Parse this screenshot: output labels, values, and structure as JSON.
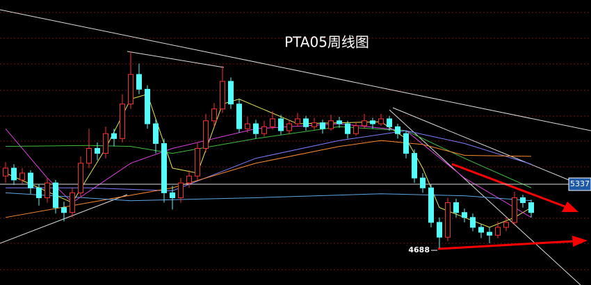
{
  "chart_data": {
    "type": "candlestick",
    "title": "PTA05周线图",
    "ylim": [
      4315,
      7205
    ],
    "up_color": "#ff3030",
    "down_color": "#54fcfc",
    "price_line": 5337,
    "low_label": 4688,
    "open": [
      5420,
      5500,
      5380,
      5450,
      5300,
      5200,
      5350,
      5100,
      5050,
      5250,
      5550,
      5700,
      5650,
      5850,
      5800,
      6150,
      6450,
      6300,
      5950,
      5750,
      5250,
      5200,
      5350,
      5420,
      5700,
      5980,
      6100,
      6380,
      6150,
      5900,
      5950,
      5850,
      5920,
      6000,
      5880,
      5950,
      6000,
      5920,
      5960,
      5900,
      5980,
      5950,
      5850,
      5930,
      5980,
      5950,
      6000,
      5920,
      5850,
      5650,
      5400,
      5300,
      4950,
      4800,
      5150,
      5050,
      5000,
      4900,
      4850,
      4820,
      4900,
      4950,
      5200,
      5150
    ],
    "high": [
      5560,
      5540,
      5500,
      5480,
      5340,
      5400,
      5380,
      5160,
      5300,
      5620,
      5900,
      5760,
      5920,
      5900,
      6250,
      6684,
      6560,
      6340,
      6000,
      5800,
      5320,
      5400,
      5480,
      5760,
      6050,
      6160,
      6536,
      6420,
      6200,
      6020,
      5990,
      5980,
      6080,
      6040,
      5990,
      6060,
      6030,
      6010,
      5990,
      6040,
      6020,
      5980,
      5970,
      6050,
      6010,
      6050,
      6030,
      5950,
      5880,
      5690,
      5450,
      5340,
      5000,
      5200,
      5190,
      5090,
      5040,
      4930,
      4900,
      4960,
      5000,
      5260,
      5230,
      5180
    ],
    "low": [
      5350,
      5330,
      5340,
      5240,
      5120,
      5150,
      5040,
      4960,
      5000,
      5200,
      5500,
      5580,
      5600,
      5720,
      5760,
      6100,
      6250,
      5900,
      5650,
      5150,
      5080,
      5150,
      5300,
      5380,
      5660,
      5920,
      6060,
      6100,
      5860,
      5860,
      5800,
      5820,
      5890,
      5840,
      5850,
      5920,
      5880,
      5890,
      5850,
      5880,
      5910,
      5800,
      5830,
      5900,
      5900,
      5930,
      5880,
      5800,
      5600,
      5350,
      5250,
      4900,
      4688,
      4760,
      5000,
      4950,
      4860,
      4790,
      4738,
      4790,
      4860,
      4920,
      5100,
      5000
    ],
    "close": [
      5500,
      5380,
      5450,
      5300,
      5200,
      5350,
      5100,
      5050,
      5250,
      5550,
      5700,
      5650,
      5850,
      5800,
      6150,
      6450,
      6300,
      5950,
      5750,
      5250,
      5200,
      5350,
      5420,
      5700,
      5980,
      6100,
      6380,
      6150,
      5900,
      5950,
      5850,
      5920,
      6000,
      5880,
      5950,
      6000,
      5920,
      5960,
      5900,
      5980,
      5950,
      5850,
      5930,
      5980,
      5950,
      6000,
      5920,
      5850,
      5650,
      5400,
      5300,
      4950,
      4800,
      5150,
      5050,
      5000,
      4900,
      4850,
      4820,
      4900,
      4950,
      5200,
      5150,
      5050
    ],
    "lines": [
      {
        "color": "#e8e85a",
        "x": [
          0,
          4,
          8,
          12,
          15,
          17,
          20,
          23,
          26,
          28,
          35,
          45,
          48,
          50,
          52,
          55,
          58,
          61,
          63
        ],
        "values": [
          5450,
          5300,
          5150,
          5700,
          6200,
          6250,
          5500,
          5450,
          6150,
          6200,
          5950,
          5970,
          5800,
          5500,
          5100,
          5000,
          4900,
          5000,
          5100
        ]
      },
      {
        "color": "#e040e0",
        "x": [
          0,
          5,
          8,
          15,
          20,
          30,
          40,
          48,
          55,
          63
        ],
        "values": [
          5900,
          5400,
          5150,
          5550,
          5700,
          5900,
          5950,
          5880,
          5400,
          5000
        ]
      },
      {
        "color": "#40c040",
        "x": [
          0,
          10,
          15,
          20,
          30,
          40,
          48,
          55,
          63
        ],
        "values": [
          5720,
          5730,
          5720,
          5650,
          5800,
          5920,
          5880,
          5600,
          5300
        ]
      },
      {
        "color": "#7f7fff",
        "x": [
          0,
          10,
          20,
          30,
          40,
          48,
          55,
          63
        ],
        "values": [
          5300,
          5300,
          5270,
          5600,
          5780,
          5880,
          5750,
          5540
        ]
      },
      {
        "color": "#ff8c30",
        "x": [
          0,
          10,
          20,
          30,
          40,
          45,
          50,
          55,
          63
        ],
        "values": [
          5000,
          5150,
          5300,
          5550,
          5720,
          5780,
          5740,
          5630,
          5620
        ]
      },
      {
        "color": "#5fa8e8",
        "x": [
          0,
          15,
          30,
          45,
          55,
          63
        ],
        "values": [
          5250,
          5170,
          5200,
          5240,
          5220,
          5170
        ]
      }
    ]
  }
}
